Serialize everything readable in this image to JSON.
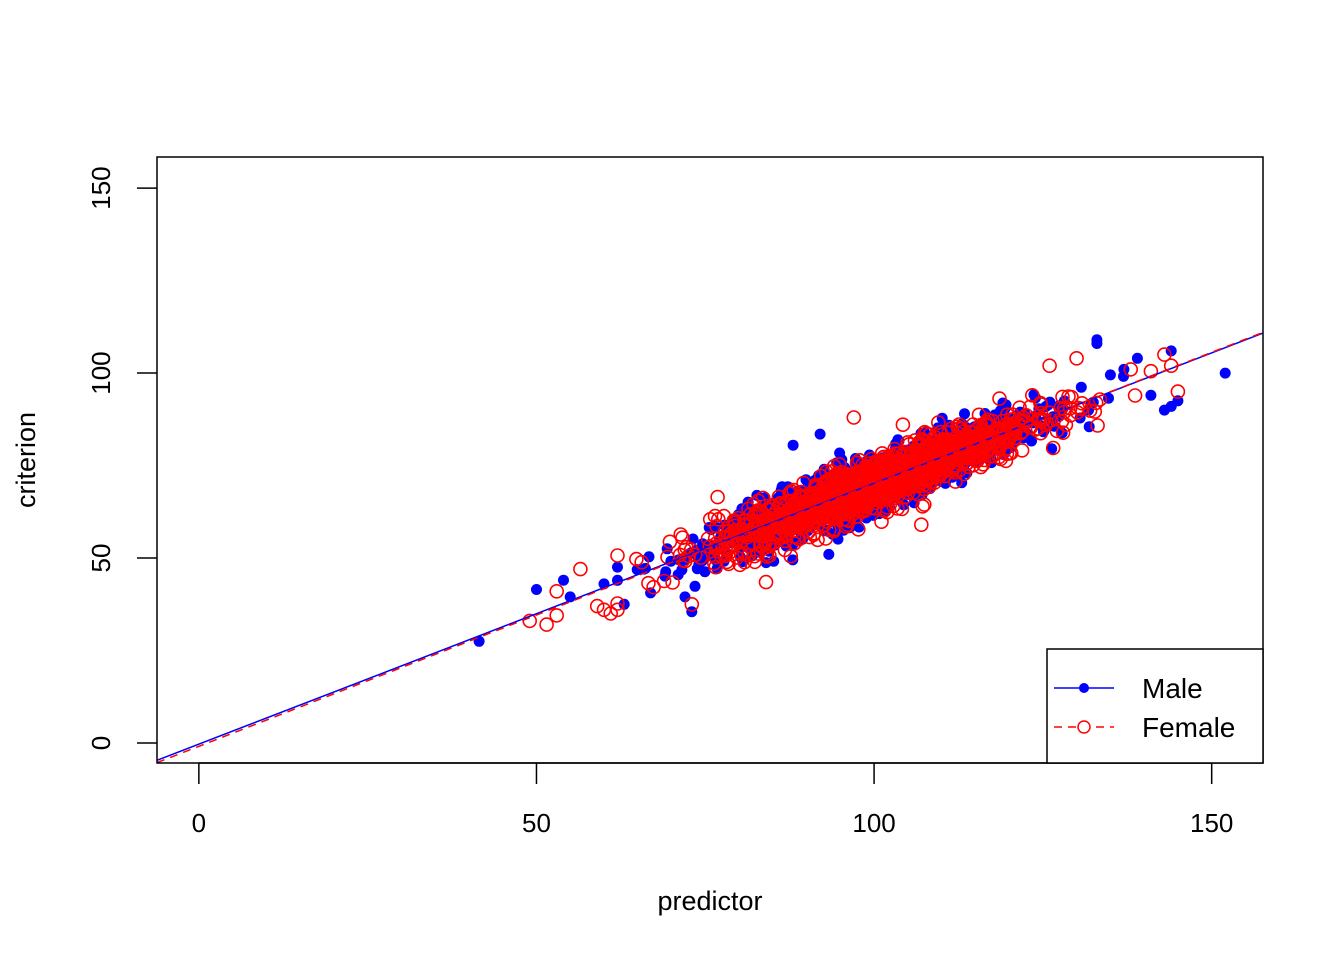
{
  "chart_data": {
    "type": "scatter",
    "title": "",
    "xlabel": "predictor",
    "ylabel": "criterion",
    "xlim": [
      -6.2,
      157.6
    ],
    "ylim": [
      -5.4,
      158.4
    ],
    "x_ticks": [
      0,
      50,
      100,
      150
    ],
    "y_ticks": [
      0,
      50,
      100,
      150
    ],
    "x_tick_labels": [
      "0",
      "50",
      "100",
      "150"
    ],
    "y_tick_labels": [
      "0",
      "50",
      "100",
      "150"
    ],
    "grid": false,
    "legend_position": "bottomright",
    "series": [
      {
        "name": "Male",
        "color": "#0000ff",
        "marker": "filled-circle",
        "line_style": "solid",
        "n_approx": 2500,
        "center": [
          100,
          70
        ],
        "predictor_sd": 15,
        "residual_sd": 3.6,
        "regression": {
          "intercept": -0.3,
          "slope": 0.705
        },
        "notable_points": [
          [
            41.5,
            27.5
          ],
          [
            50,
            41.5
          ],
          [
            54,
            44
          ],
          [
            55,
            39.5
          ],
          [
            60,
            43
          ],
          [
            63,
            37.5
          ],
          [
            88,
            80.5
          ],
          [
            92,
            83.5
          ],
          [
            133,
            109
          ],
          [
            133,
            108
          ],
          [
            135,
            99.5
          ],
          [
            137,
            101
          ],
          [
            139,
            104
          ],
          [
            141,
            94
          ],
          [
            143,
            90
          ],
          [
            144,
            91
          ],
          [
            145,
            92.5
          ],
          [
            144,
            106
          ],
          [
            152,
            100
          ],
          [
            73,
            35.5
          ],
          [
            72,
            39.5
          ]
        ]
      },
      {
        "name": "Female",
        "color": "#ff0000",
        "marker": "open-circle",
        "line_style": "dashed",
        "n_approx": 2500,
        "center": [
          100,
          70
        ],
        "predictor_sd": 15,
        "residual_sd": 3.6,
        "regression": {
          "intercept": -0.9,
          "slope": 0.71
        },
        "notable_points": [
          [
            49,
            33
          ],
          [
            51.5,
            32
          ],
          [
            53,
            34.5
          ],
          [
            53,
            41
          ],
          [
            56.5,
            47
          ],
          [
            59,
            37
          ],
          [
            60,
            36
          ],
          [
            61,
            35
          ],
          [
            62,
            36
          ],
          [
            84,
            43.5
          ],
          [
            97,
            88
          ],
          [
            107,
            59
          ],
          [
            126,
            102
          ],
          [
            130,
            104
          ],
          [
            138,
            101
          ],
          [
            141,
            100.5
          ],
          [
            144,
            102
          ],
          [
            145,
            95
          ],
          [
            143,
            105
          ],
          [
            73,
            37.5
          ]
        ]
      }
    ],
    "lines": [
      {
        "name": "Male fit",
        "color": "#0000ff",
        "style": "solid",
        "intercept": -0.3,
        "slope": 0.705
      },
      {
        "name": "Female fit",
        "color": "#ff0000",
        "style": "dashed",
        "intercept": -0.9,
        "slope": 0.71
      }
    ]
  },
  "axes": {
    "x_title": "predictor",
    "y_title": "criterion"
  },
  "legend": {
    "items": [
      {
        "label": "Male",
        "color": "#0000ff",
        "marker": "filled-circle",
        "line": "solid"
      },
      {
        "label": "Female",
        "color": "#ff0000",
        "marker": "open-circle",
        "line": "dashed"
      }
    ]
  }
}
